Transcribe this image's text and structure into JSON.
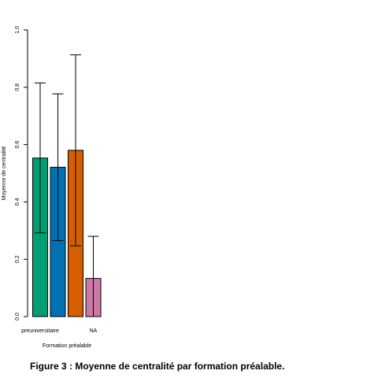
{
  "chart_data": {
    "type": "bar",
    "categories": [
      "preuniversitaire",
      "",
      "",
      "NA"
    ],
    "values": [
      0.553,
      0.521,
      0.58,
      0.133
    ],
    "error_low": [
      0.292,
      0.265,
      0.247,
      0.0
    ],
    "error_high": [
      0.815,
      0.777,
      0.913,
      0.28
    ],
    "colors": [
      "#009e73",
      "#0072b2",
      "#d55e00",
      "#cc79a7"
    ],
    "xlabel": "Formation préalable",
    "ylabel": "Moyenne de centralité",
    "ylim": [
      0,
      1
    ],
    "yticks": [
      "0.0",
      "0.2",
      "0.4",
      "0.6",
      "0.8",
      "1.0"
    ],
    "grid": false
  },
  "caption": "Figure 3 : Moyenne de centralité par formation préalable."
}
